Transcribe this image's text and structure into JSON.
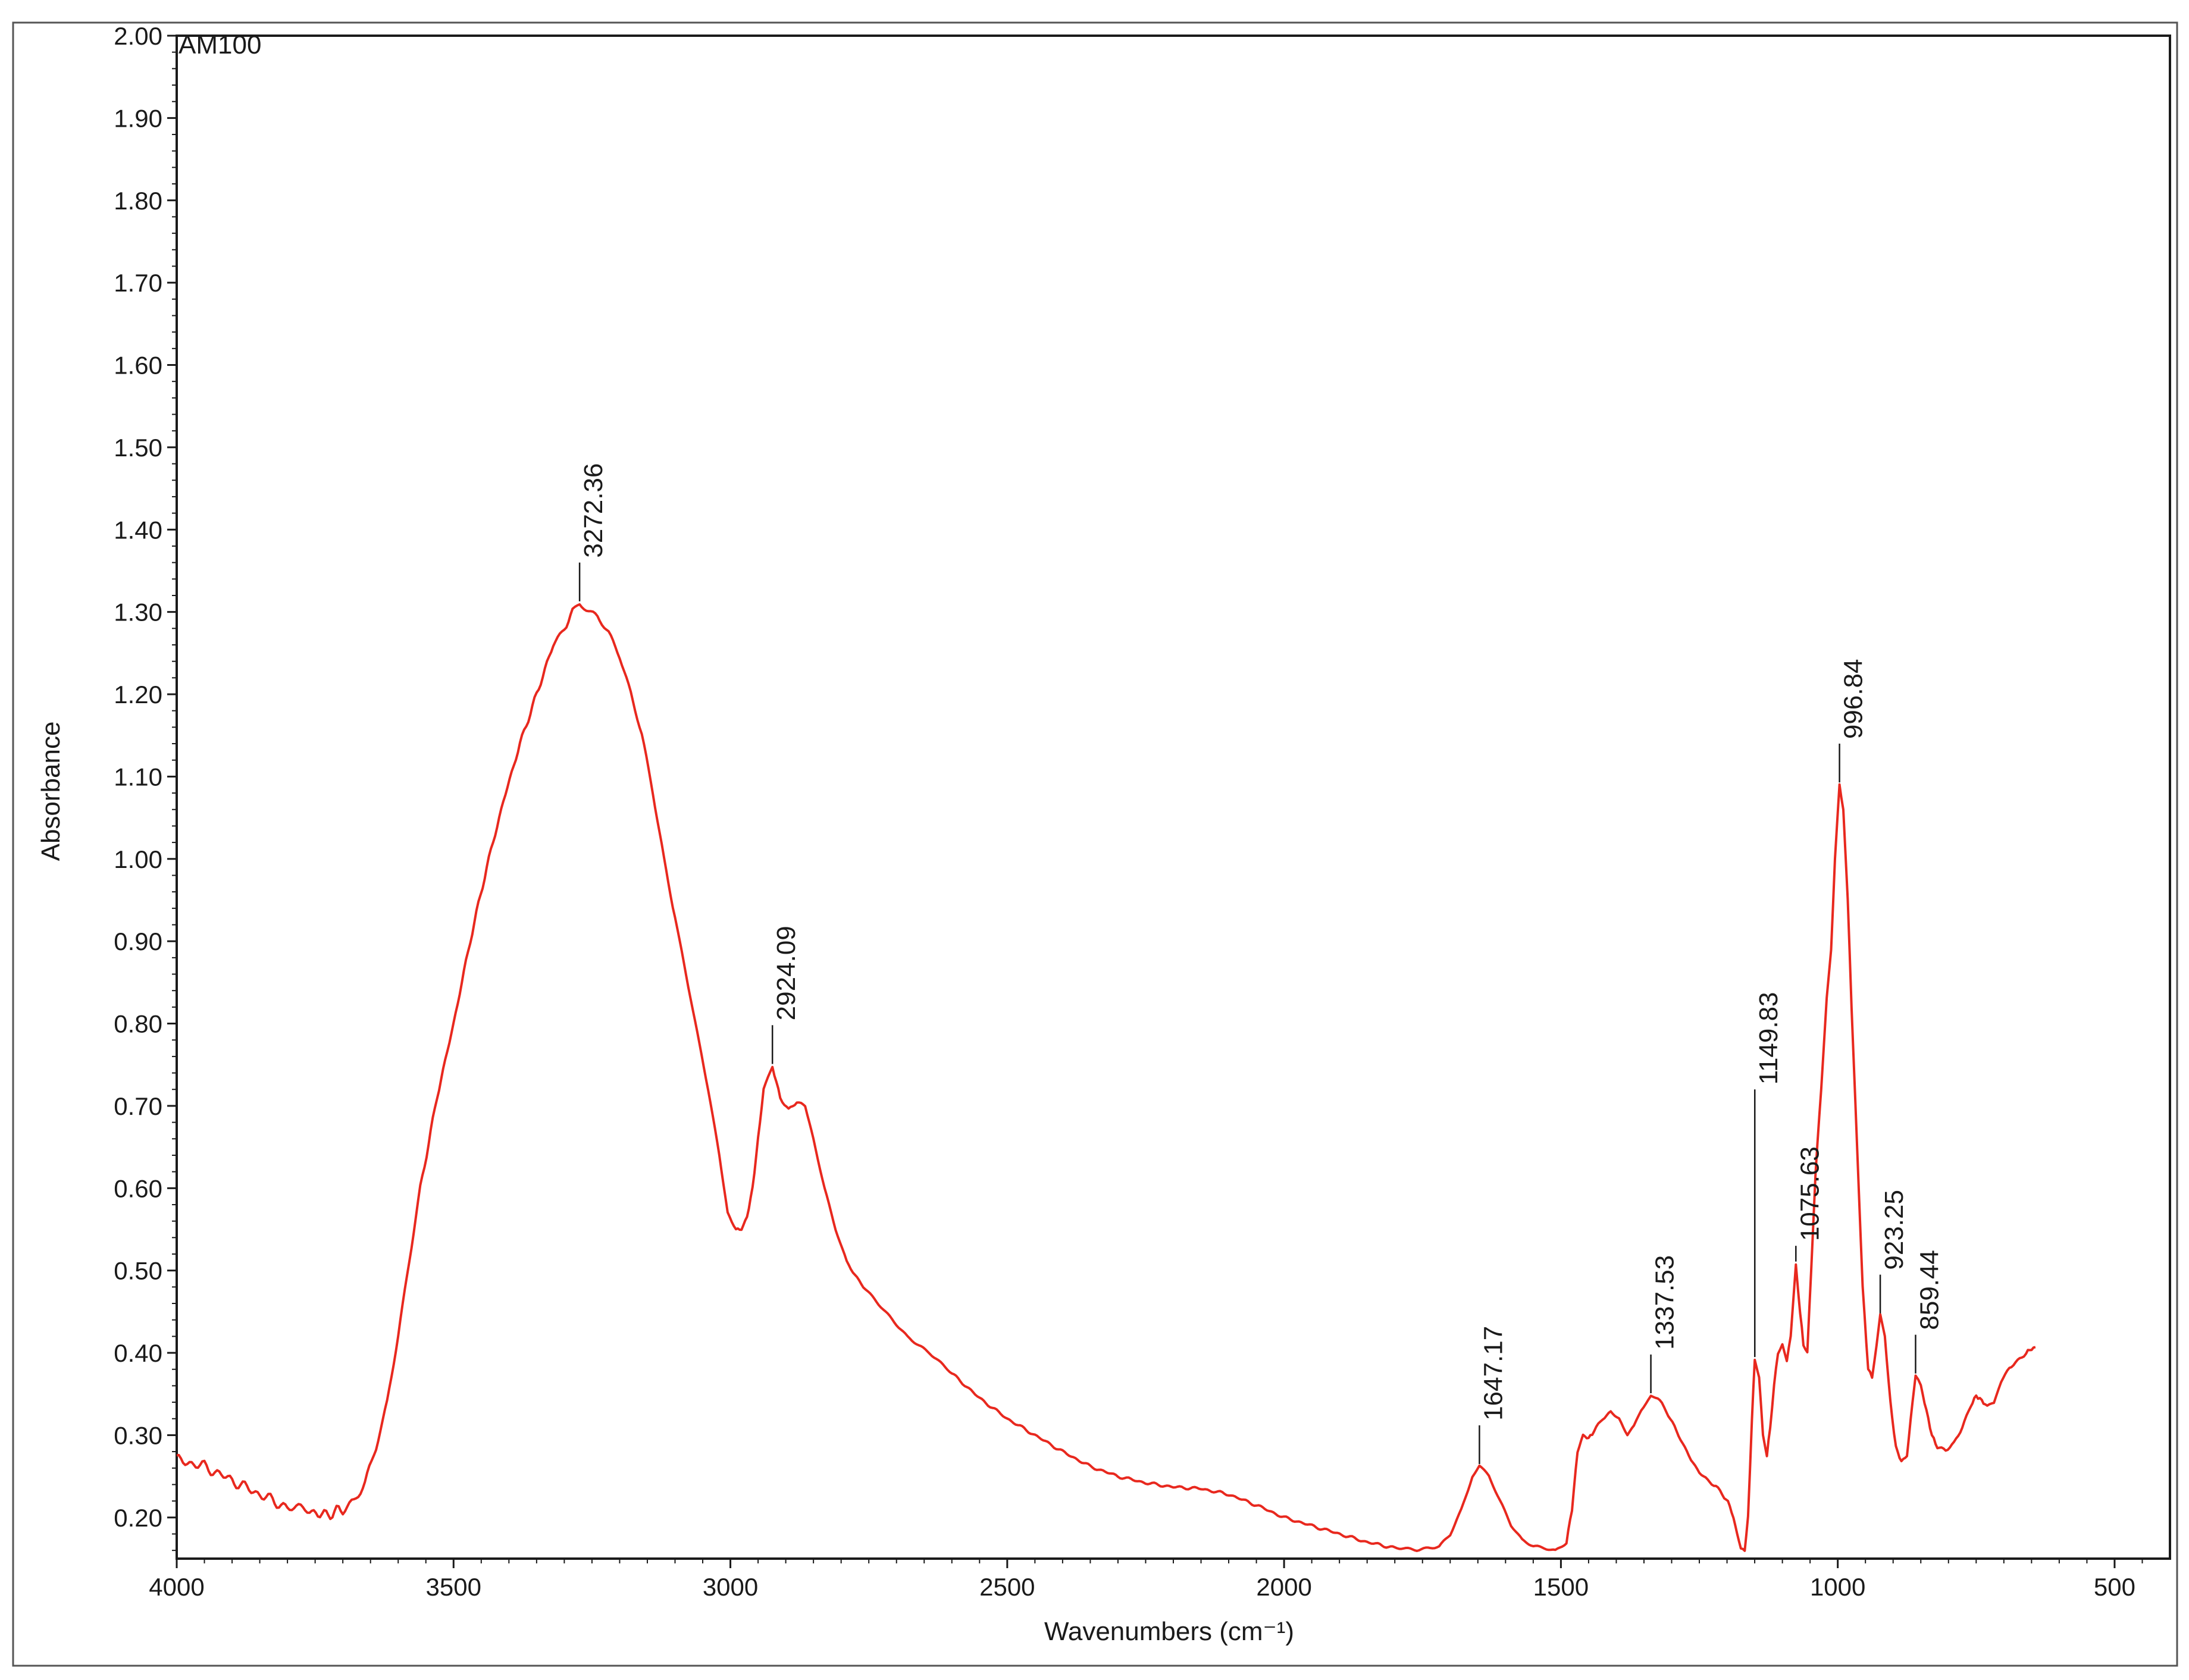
{
  "chart_data": {
    "type": "line",
    "title": "AM100",
    "xlabel": "Wavenumbers (cm⁻¹)",
    "ylabel": "Absorbance",
    "xlim": [
      4000,
      400
    ],
    "ylim": [
      0.15,
      2.0
    ],
    "x_reversed": true,
    "grid": false,
    "legend": "none",
    "series_color": "#e8281e",
    "xticks": [
      4000,
      3500,
      3000,
      2500,
      2000,
      1500,
      1000,
      500
    ],
    "xtick_labels": [
      "4000",
      "3500",
      "3000",
      "2500",
      "2000",
      "1500",
      "1000",
      "500"
    ],
    "yticks": [
      0.2,
      0.3,
      0.4,
      0.5,
      0.6,
      0.7,
      0.8,
      0.9,
      1.0,
      1.1,
      1.2,
      1.3,
      1.4,
      1.5,
      1.6,
      1.7,
      1.8,
      1.9,
      2.0
    ],
    "ytick_labels": [
      "0.20",
      "0.30",
      "0.40",
      "0.50",
      "0.60",
      "0.70",
      "0.80",
      "0.90",
      "1.00",
      "1.10",
      "1.20",
      "1.30",
      "1.40",
      "1.50",
      "1.60",
      "1.70",
      "1.80",
      "1.90",
      "2.00"
    ],
    "series": [
      {
        "name": "",
        "points": [
          [
            4000,
            0.27
          ],
          [
            3950,
            0.262
          ],
          [
            3900,
            0.245
          ],
          [
            3850,
            0.228
          ],
          [
            3800,
            0.212
          ],
          [
            3760,
            0.207
          ],
          [
            3730,
            0.203
          ],
          [
            3700,
            0.21
          ],
          [
            3680,
            0.222
          ],
          [
            3660,
            0.245
          ],
          [
            3640,
            0.285
          ],
          [
            3620,
            0.34
          ],
          [
            3600,
            0.42
          ],
          [
            3580,
            0.51
          ],
          [
            3560,
            0.6
          ],
          [
            3530,
            0.71
          ],
          [
            3500,
            0.8
          ],
          [
            3470,
            0.9
          ],
          [
            3440,
            0.99
          ],
          [
            3410,
            1.07
          ],
          [
            3380,
            1.14
          ],
          [
            3350,
            1.2
          ],
          [
            3320,
            1.26
          ],
          [
            3300,
            1.28
          ],
          [
            3285,
            1.3
          ],
          [
            3272.36,
            1.31
          ],
          [
            3260,
            1.305
          ],
          [
            3240,
            1.295
          ],
          [
            3220,
            1.275
          ],
          [
            3200,
            1.245
          ],
          [
            3180,
            1.2
          ],
          [
            3160,
            1.15
          ],
          [
            3140,
            1.08
          ],
          [
            3120,
            1.0
          ],
          [
            3100,
            0.93
          ],
          [
            3080,
            0.86
          ],
          [
            3060,
            0.79
          ],
          [
            3040,
            0.72
          ],
          [
            3020,
            0.64
          ],
          [
            3005,
            0.57
          ],
          [
            2990,
            0.55
          ],
          [
            2980,
            0.55
          ],
          [
            2970,
            0.565
          ],
          [
            2960,
            0.6
          ],
          [
            2950,
            0.66
          ],
          [
            2940,
            0.72
          ],
          [
            2924.09,
            0.748
          ],
          [
            2910,
            0.71
          ],
          [
            2895,
            0.695
          ],
          [
            2880,
            0.705
          ],
          [
            2865,
            0.7
          ],
          [
            2850,
            0.66
          ],
          [
            2830,
            0.6
          ],
          [
            2810,
            0.55
          ],
          [
            2790,
            0.51
          ],
          [
            2760,
            0.48
          ],
          [
            2720,
            0.45
          ],
          [
            2680,
            0.42
          ],
          [
            2640,
            0.4
          ],
          [
            2600,
            0.375
          ],
          [
            2550,
            0.345
          ],
          [
            2500,
            0.32
          ],
          [
            2450,
            0.3
          ],
          [
            2400,
            0.28
          ],
          [
            2350,
            0.262
          ],
          [
            2300,
            0.25
          ],
          [
            2250,
            0.242
          ],
          [
            2200,
            0.237
          ],
          [
            2150,
            0.235
          ],
          [
            2100,
            0.228
          ],
          [
            2050,
            0.215
          ],
          [
            2000,
            0.2
          ],
          [
            1950,
            0.19
          ],
          [
            1900,
            0.18
          ],
          [
            1850,
            0.17
          ],
          [
            1800,
            0.163
          ],
          [
            1760,
            0.16
          ],
          [
            1720,
            0.165
          ],
          [
            1700,
            0.18
          ],
          [
            1680,
            0.21
          ],
          [
            1660,
            0.25
          ],
          [
            1647.17,
            0.262
          ],
          [
            1630,
            0.25
          ],
          [
            1610,
            0.22
          ],
          [
            1590,
            0.19
          ],
          [
            1570,
            0.172
          ],
          [
            1550,
            0.165
          ],
          [
            1530,
            0.163
          ],
          [
            1510,
            0.16
          ],
          [
            1490,
            0.17
          ],
          [
            1480,
            0.21
          ],
          [
            1470,
            0.28
          ],
          [
            1460,
            0.3
          ],
          [
            1450,
            0.296
          ],
          [
            1440,
            0.305
          ],
          [
            1425,
            0.32
          ],
          [
            1410,
            0.328
          ],
          [
            1395,
            0.32
          ],
          [
            1380,
            0.3
          ],
          [
            1368,
            0.31
          ],
          [
            1355,
            0.33
          ],
          [
            1337.53,
            0.348
          ],
          [
            1325,
            0.345
          ],
          [
            1310,
            0.33
          ],
          [
            1295,
            0.31
          ],
          [
            1280,
            0.29
          ],
          [
            1265,
            0.27
          ],
          [
            1250,
            0.255
          ],
          [
            1235,
            0.245
          ],
          [
            1220,
            0.238
          ],
          [
            1205,
            0.225
          ],
          [
            1195,
            0.215
          ],
          [
            1185,
            0.19
          ],
          [
            1175,
            0.162
          ],
          [
            1168,
            0.16
          ],
          [
            1162,
            0.2
          ],
          [
            1155,
            0.32
          ],
          [
            1149.83,
            0.392
          ],
          [
            1142,
            0.37
          ],
          [
            1135,
            0.3
          ],
          [
            1128,
            0.275
          ],
          [
            1122,
            0.31
          ],
          [
            1115,
            0.36
          ],
          [
            1108,
            0.4
          ],
          [
            1100,
            0.412
          ],
          [
            1092,
            0.39
          ],
          [
            1085,
            0.42
          ],
          [
            1075.63,
            0.508
          ],
          [
            1068,
            0.45
          ],
          [
            1062,
            0.41
          ],
          [
            1055,
            0.4
          ],
          [
            1048,
            0.5
          ],
          [
            1040,
            0.62
          ],
          [
            1030,
            0.72
          ],
          [
            1020,
            0.83
          ],
          [
            1012,
            0.89
          ],
          [
            1005,
            1.0
          ],
          [
            996.84,
            1.09
          ],
          [
            990,
            1.06
          ],
          [
            982,
            0.95
          ],
          [
            975,
            0.82
          ],
          [
            965,
            0.65
          ],
          [
            955,
            0.48
          ],
          [
            945,
            0.38
          ],
          [
            938,
            0.37
          ],
          [
            930,
            0.41
          ],
          [
            923.25,
            0.445
          ],
          [
            915,
            0.42
          ],
          [
            905,
            0.34
          ],
          [
            895,
            0.285
          ],
          [
            885,
            0.268
          ],
          [
            875,
            0.275
          ],
          [
            865,
            0.34
          ],
          [
            859.44,
            0.372
          ],
          [
            850,
            0.36
          ],
          [
            840,
            0.33
          ],
          [
            830,
            0.3
          ],
          [
            820,
            0.285
          ],
          [
            805,
            0.282
          ],
          [
            790,
            0.29
          ],
          [
            775,
            0.31
          ],
          [
            760,
            0.335
          ],
          [
            750,
            0.348
          ],
          [
            740,
            0.342
          ],
          [
            730,
            0.335
          ],
          [
            718,
            0.34
          ],
          [
            705,
            0.365
          ],
          [
            690,
            0.382
          ],
          [
            675,
            0.39
          ],
          [
            660,
            0.4
          ],
          [
            650,
            0.405
          ],
          [
            643,
            0.407
          ]
        ]
      }
    ],
    "annotations": [
      {
        "x": 3272.36,
        "label": "3272.36"
      },
      {
        "x": 2924.09,
        "label": "2924.09"
      },
      {
        "x": 1647.17,
        "label": "1647.17"
      },
      {
        "x": 1337.53,
        "label": "1337.53"
      },
      {
        "x": 1149.83,
        "label": "1149.83"
      },
      {
        "x": 1075.63,
        "label": "1075.63"
      },
      {
        "x": 996.84,
        "label": "996.84"
      },
      {
        "x": 923.25,
        "label": "923.25"
      },
      {
        "x": 859.44,
        "label": "859.44"
      }
    ]
  }
}
